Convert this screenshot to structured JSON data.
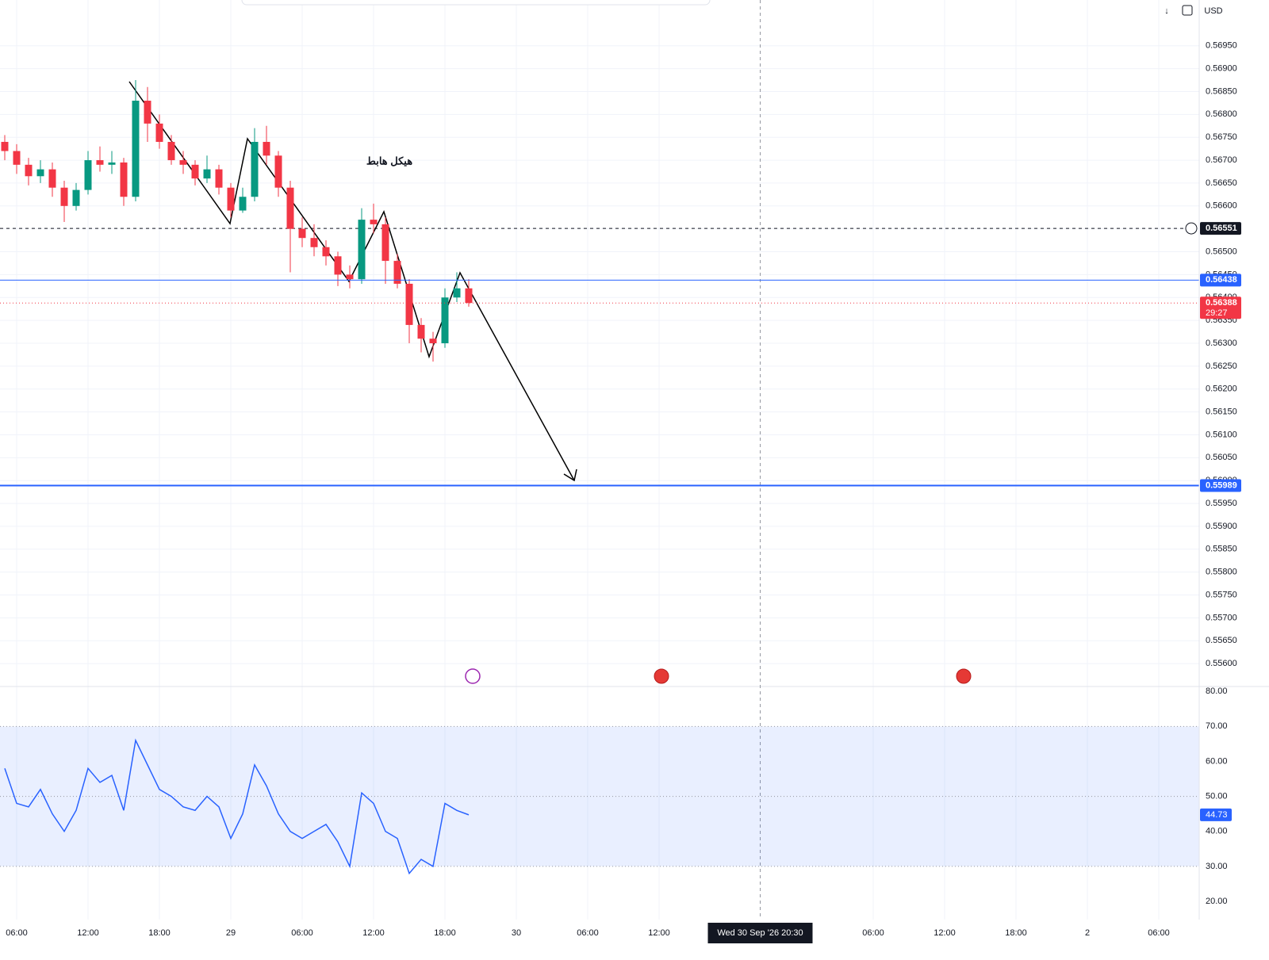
{
  "chart_data": [
    {
      "type": "candlestick",
      "x": [
        5,
        6,
        7,
        8,
        9,
        10,
        11,
        12,
        13,
        14,
        15,
        16,
        17,
        18,
        19,
        20,
        21,
        22,
        23,
        24,
        25,
        26,
        27,
        28,
        29,
        30,
        31,
        32,
        33,
        34,
        35,
        36,
        37,
        38,
        39,
        40,
        41,
        42,
        43,
        44
      ],
      "open": [
        0.5674,
        0.5672,
        0.5669,
        0.56665,
        0.5668,
        0.5664,
        0.566,
        0.56635,
        0.567,
        0.5669,
        0.56695,
        0.5662,
        0.5683,
        0.5678,
        0.5674,
        0.567,
        0.5669,
        0.5666,
        0.5668,
        0.5664,
        0.5659,
        0.5662,
        0.5674,
        0.5671,
        0.5664,
        0.5655,
        0.5653,
        0.5651,
        0.5649,
        0.5645,
        0.5644,
        0.5657,
        0.5656,
        0.5648,
        0.5643,
        0.5634,
        0.5631,
        0.563,
        0.564,
        0.5642
      ],
      "high": [
        0.56755,
        0.56735,
        0.56705,
        0.567,
        0.56695,
        0.56655,
        0.5665,
        0.5672,
        0.5673,
        0.5672,
        0.56705,
        0.56875,
        0.5686,
        0.568,
        0.56755,
        0.5672,
        0.567,
        0.5671,
        0.5669,
        0.5665,
        0.5664,
        0.5677,
        0.56775,
        0.5672,
        0.56655,
        0.56575,
        0.5656,
        0.56525,
        0.565,
        0.5647,
        0.56595,
        0.56605,
        0.56575,
        0.56495,
        0.5644,
        0.56355,
        0.56325,
        0.5642,
        0.56455,
        0.5644
      ],
      "low": [
        0.567,
        0.5667,
        0.56645,
        0.5665,
        0.5662,
        0.56565,
        0.5659,
        0.56625,
        0.56675,
        0.5667,
        0.566,
        0.5661,
        0.5674,
        0.56725,
        0.5669,
        0.5667,
        0.56645,
        0.5665,
        0.56625,
        0.56575,
        0.56585,
        0.5661,
        0.5669,
        0.5662,
        0.56455,
        0.5651,
        0.5649,
        0.5647,
        0.56425,
        0.5642,
        0.5643,
        0.5654,
        0.5643,
        0.5642,
        0.563,
        0.5628,
        0.5626,
        0.5629,
        0.5639,
        0.5638
      ],
      "close": [
        0.5672,
        0.5669,
        0.56665,
        0.5668,
        0.5664,
        0.566,
        0.56635,
        0.567,
        0.5669,
        0.56695,
        0.5662,
        0.5683,
        0.5678,
        0.5674,
        0.567,
        0.5669,
        0.5666,
        0.5668,
        0.5664,
        0.5659,
        0.5662,
        0.5674,
        0.5671,
        0.5664,
        0.5655,
        0.5653,
        0.5651,
        0.5649,
        0.5645,
        0.5644,
        0.5657,
        0.5656,
        0.5648,
        0.5643,
        0.5634,
        0.5631,
        0.563,
        0.564,
        0.5642,
        0.56388
      ],
      "up_color": "#089981",
      "down_color": "#f23645",
      "xlim": [
        4.6,
        105.4
      ],
      "xticks": [
        {
          "value": 6,
          "label": "06:00"
        },
        {
          "value": 12,
          "label": "12:00"
        },
        {
          "value": 18,
          "label": "18:00"
        },
        {
          "value": 24,
          "label": "29"
        },
        {
          "value": 30,
          "label": "06:00"
        },
        {
          "value": 36,
          "label": "12:00"
        },
        {
          "value": 42,
          "label": "18:00"
        },
        {
          "value": 48,
          "label": "30"
        },
        {
          "value": 54,
          "label": "06:00"
        },
        {
          "value": 60,
          "label": "12:00"
        },
        {
          "value": 78,
          "label": "06:00"
        },
        {
          "value": 84,
          "label": "12:00"
        },
        {
          "value": 90,
          "label": "18:00"
        },
        {
          "value": 96,
          "label": "2"
        },
        {
          "value": 102,
          "label": "06:00"
        }
      ],
      "ylim": [
        0.5555,
        0.5705
      ],
      "yticks": [
        {
          "value": 0.556,
          "label": "0.55600"
        },
        {
          "value": 0.5565,
          "label": "0.55650"
        },
        {
          "value": 0.557,
          "label": "0.55700"
        },
        {
          "value": 0.5575,
          "label": "0.55750"
        },
        {
          "value": 0.558,
          "label": "0.55800"
        },
        {
          "value": 0.5585,
          "label": "0.55850"
        },
        {
          "value": 0.559,
          "label": "0.55900"
        },
        {
          "value": 0.5595,
          "label": "0.55950"
        },
        {
          "value": 0.56,
          "label": "0.56000"
        },
        {
          "value": 0.5605,
          "label": "0.56050"
        },
        {
          "value": 0.561,
          "label": "0.56100"
        },
        {
          "value": 0.5615,
          "label": "0.56150"
        },
        {
          "value": 0.562,
          "label": "0.56200"
        },
        {
          "value": 0.5625,
          "label": "0.56250"
        },
        {
          "value": 0.563,
          "label": "0.56300"
        },
        {
          "value": 0.5635,
          "label": "0.56350"
        },
        {
          "value": 0.564,
          "label": "0.56400"
        },
        {
          "value": 0.5645,
          "label": "0.56450"
        },
        {
          "value": 0.565,
          "label": "0.56500"
        },
        {
          "value": 0.5655,
          "label": "0.56550"
        },
        {
          "value": 0.566,
          "label": "0.56600"
        },
        {
          "value": 0.5665,
          "label": "0.56650"
        },
        {
          "value": 0.567,
          "label": "0.56700"
        },
        {
          "value": 0.5675,
          "label": "0.56750"
        },
        {
          "value": 0.568,
          "label": "0.56800"
        },
        {
          "value": 0.5685,
          "label": "0.56850"
        },
        {
          "value": 0.569,
          "label": "0.56900"
        },
        {
          "value": 0.5695,
          "label": "0.56950"
        }
      ],
      "grid": true,
      "price_lines": [
        {
          "value": 0.56551,
          "color": "#131722",
          "style": "dashed"
        },
        {
          "value": 0.56438,
          "color": "#2962ff",
          "style": "solid"
        },
        {
          "value": 0.55989,
          "color": "#2962ff",
          "style": "thick"
        },
        {
          "value": 0.56388,
          "color": "#f23645",
          "style": "dotted"
        }
      ],
      "countdown": "29:27",
      "annotation": "هيكل هابط",
      "currency": "USD",
      "crosshair": {
        "x": 68.5,
        "label": "Wed 30 Sep '26  20:30"
      }
    },
    {
      "type": "line",
      "x": [
        5,
        6,
        7,
        8,
        9,
        10,
        11,
        12,
        13,
        14,
        15,
        16,
        17,
        18,
        19,
        20,
        21,
        22,
        23,
        24,
        25,
        26,
        27,
        28,
        29,
        30,
        31,
        32,
        33,
        34,
        35,
        36,
        37,
        38,
        39,
        40,
        41,
        42,
        43,
        44
      ],
      "values": [
        58,
        48,
        47,
        52,
        45,
        40,
        46,
        58,
        54,
        56,
        46,
        66,
        59,
        52,
        50,
        47,
        46,
        50,
        47,
        38,
        45,
        59,
        53,
        45,
        40,
        38,
        40,
        42,
        37,
        30,
        51,
        48,
        40,
        38,
        28,
        32,
        30,
        48,
        46,
        44.73
      ],
      "color": "#2962ff",
      "xlim": [
        4.6,
        105.4
      ],
      "ylim": [
        14.8,
        81.4
      ],
      "yticks": [
        {
          "value": 20,
          "label": "20.00"
        },
        {
          "value": 30,
          "label": "30.00"
        },
        {
          "value": 40,
          "label": "40.00"
        },
        {
          "value": 50,
          "label": "50.00"
        },
        {
          "value": 60,
          "label": "60.00"
        },
        {
          "value": 70,
          "label": "70.00"
        },
        {
          "value": 80,
          "label": "80.00"
        }
      ],
      "levels": [
        30,
        50,
        70
      ]
    }
  ]
}
